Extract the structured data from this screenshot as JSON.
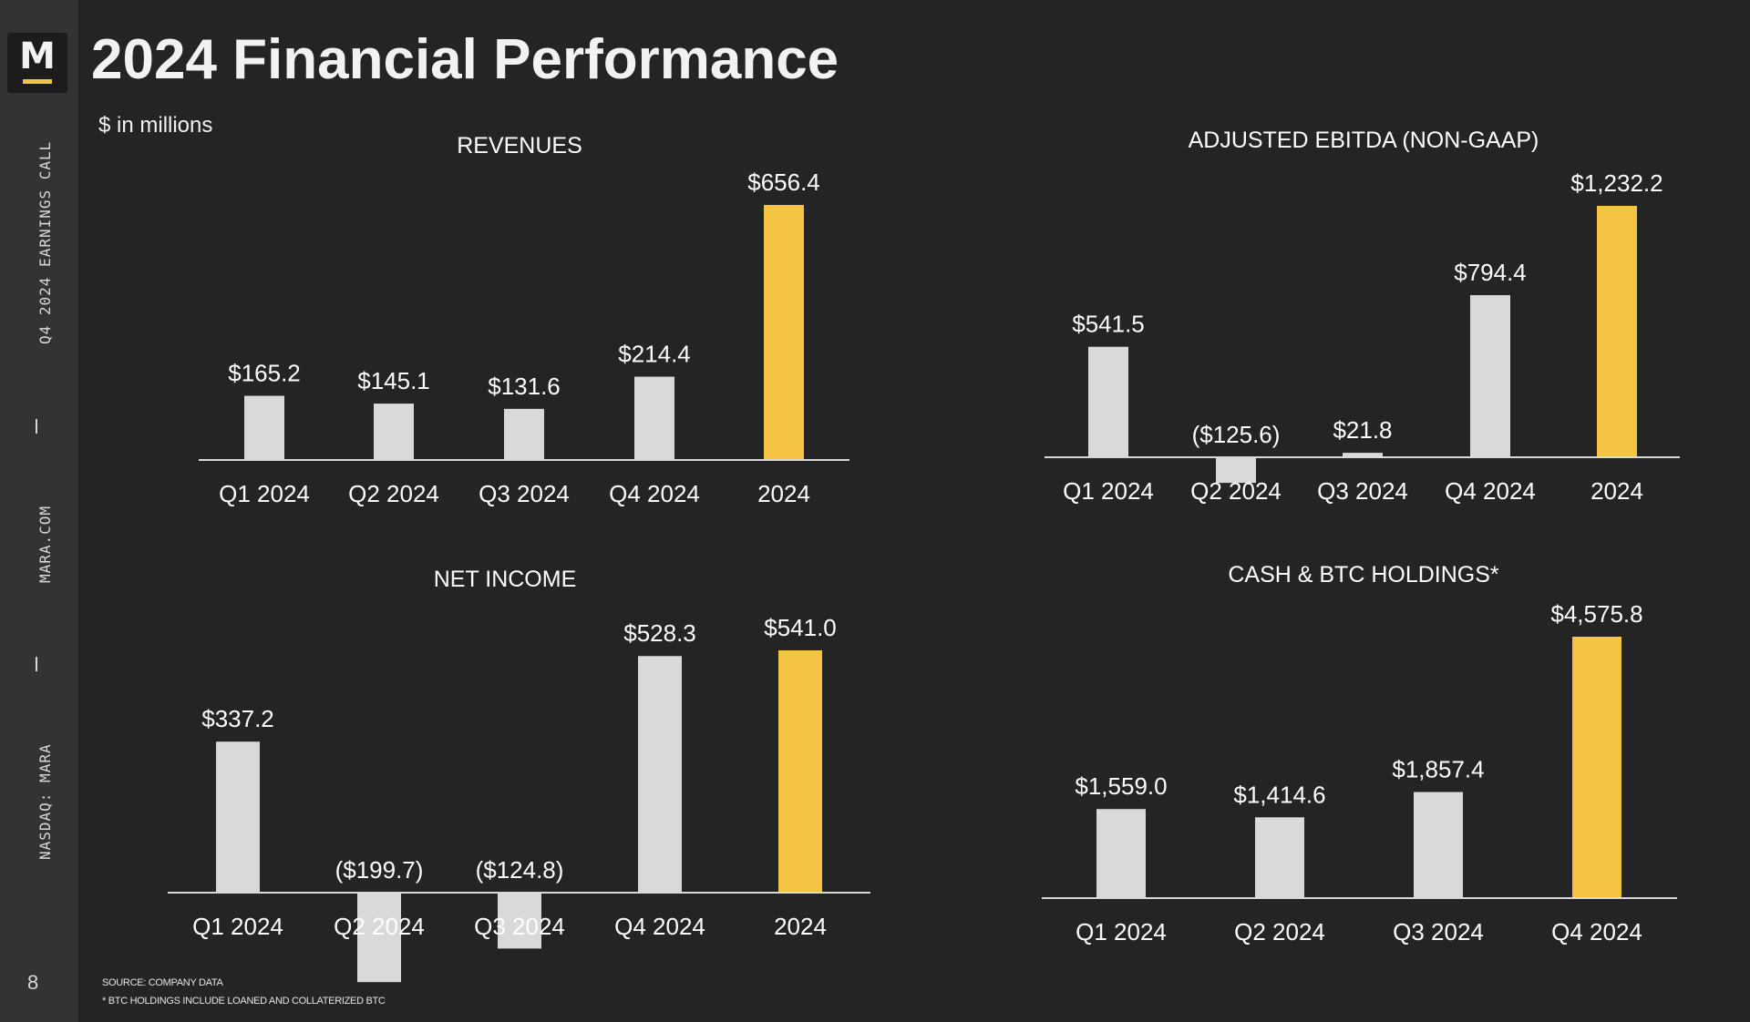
{
  "slide": {
    "title": "2024 Financial Performance",
    "units": "$ in millions",
    "page_number": "8",
    "logo_letter": "M",
    "sidebar": {
      "earnings_call": "Q4 2024 EARNINGS CALL",
      "website": "MARA.COM",
      "ticker": "NASDAQ: MARA"
    },
    "footnotes": {
      "source": "SOURCE: COMPANY DATA",
      "btc_note": "* BTC HOLDINGS INCLUDE LOANED AND COLLATERIZED BTC"
    }
  },
  "colors": {
    "background": "#252425",
    "sidebar": "#333234",
    "bar_default": "#d9d9d9",
    "bar_highlight": "#f5c343",
    "axis": "#d9d9d9"
  },
  "chart_data": [
    {
      "type": "bar",
      "title": "REVENUES",
      "categories": [
        "Q1 2024",
        "Q2 2024",
        "Q3 2024",
        "Q4 2024",
        "2024"
      ],
      "values": [
        165.2,
        145.1,
        131.6,
        214.4,
        656.4
      ],
      "value_labels": [
        "$165.2",
        "$145.1",
        "$131.6",
        "$214.4",
        "$656.4"
      ],
      "highlight_index": 4,
      "ylim": [
        0,
        656.4
      ]
    },
    {
      "type": "bar",
      "title": "ADJUSTED EBITDA (NON-GAAP)",
      "categories": [
        "Q1 2024",
        "Q2 2024",
        "Q3 2024",
        "Q4 2024",
        "2024"
      ],
      "values": [
        541.5,
        -125.6,
        21.8,
        794.4,
        1232.2
      ],
      "value_labels": [
        "$541.5",
        "($125.6)",
        "$21.8",
        "$794.4",
        "$1,232.2"
      ],
      "highlight_index": 4,
      "ylim": [
        -125.6,
        1232.2
      ]
    },
    {
      "type": "bar",
      "title": "NET INCOME",
      "categories": [
        "Q1 2024",
        "Q2 2024",
        "Q3 2024",
        "Q4 2024",
        "2024"
      ],
      "values": [
        337.2,
        -199.7,
        -124.8,
        528.3,
        541.0
      ],
      "value_labels": [
        "$337.2",
        "($199.7)",
        "($124.8)",
        "$528.3",
        "$541.0"
      ],
      "highlight_index": 4,
      "ylim": [
        -199.7,
        541.0
      ]
    },
    {
      "type": "bar",
      "title": "CASH & BTC HOLDINGS*",
      "categories": [
        "Q1 2024",
        "Q2 2024",
        "Q3 2024",
        "Q4 2024"
      ],
      "values": [
        1559.0,
        1414.6,
        1857.4,
        4575.8
      ],
      "value_labels": [
        "$1,559.0",
        "$1,414.6",
        "$1,857.4",
        "$4,575.8"
      ],
      "highlight_index": 3,
      "ylim": [
        0,
        4575.8
      ]
    }
  ]
}
